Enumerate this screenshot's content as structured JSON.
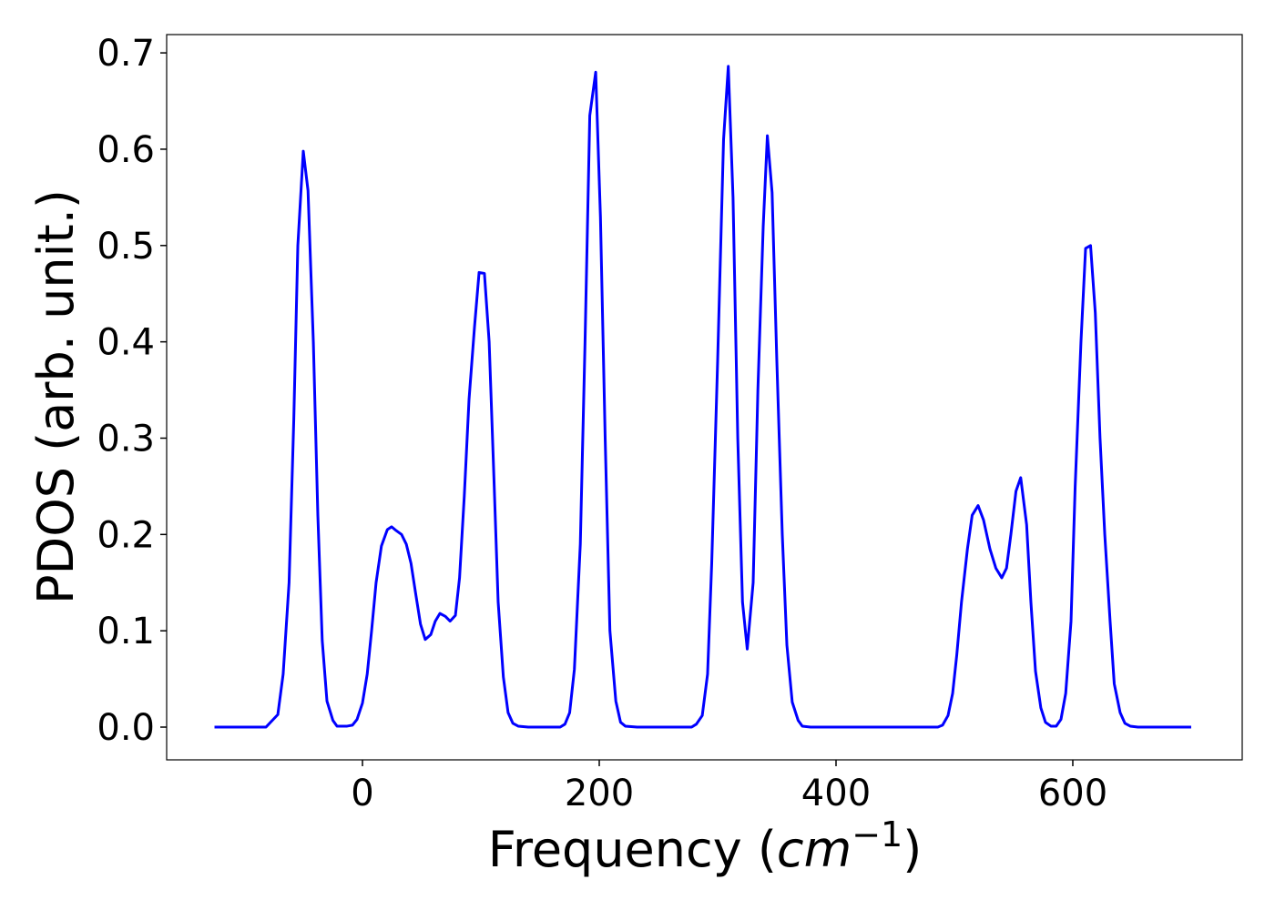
{
  "chart_data": {
    "type": "line",
    "x_label_parts": [
      "Frequency (",
      "cm",
      "−1",
      ")"
    ],
    "y_label": "PDOS (arb. unit.)",
    "x": [
      -125,
      -81.5,
      -71.5,
      -67,
      -62,
      -58,
      -54.6,
      -50,
      -46,
      -41.5,
      -37.7,
      -34,
      -30,
      -25,
      -21.5,
      -13,
      -8.5,
      -4.6,
      0,
      4,
      7.7,
      11.5,
      16,
      21,
      24.6,
      28.5,
      33,
      37,
      41,
      45,
      49,
      53,
      57.7,
      61.5,
      65.4,
      70,
      74,
      78.5,
      82,
      86,
      90,
      94.6,
      98.5,
      103,
      107,
      111,
      114.6,
      119,
      123,
      127,
      131.5,
      140,
      167,
      171,
      175,
      179,
      184,
      188,
      192,
      197,
      201,
      205,
      209,
      214,
      218,
      222,
      232,
      278,
      282,
      287,
      291.5,
      295,
      300,
      305,
      309,
      313,
      317,
      321,
      325,
      330,
      334,
      338.5,
      342,
      346,
      350,
      354.6,
      358.5,
      363,
      368,
      371.5,
      378.5,
      486,
      490,
      494.6,
      498.5,
      502,
      506,
      511,
      515,
      520,
      524.6,
      530,
      535,
      540,
      544,
      547.7,
      552,
      556,
      561,
      564.6,
      568.5,
      573,
      576.9,
      581.5,
      586,
      590,
      594,
      598.5,
      602,
      606.9,
      610.8,
      615,
      619,
      623,
      627,
      631.5,
      635,
      640,
      644,
      648.5,
      655,
      700
    ],
    "series": [
      {
        "name": "PDOS",
        "color": "#0000ff",
        "values": [
          0,
          0,
          0.013,
          0.055,
          0.15,
          0.32,
          0.5,
          0.598,
          0.557,
          0.4,
          0.22,
          0.09,
          0.027,
          0.007,
          0.001,
          0.001,
          0.002,
          0.008,
          0.025,
          0.055,
          0.1,
          0.15,
          0.188,
          0.205,
          0.208,
          0.204,
          0.2,
          0.19,
          0.17,
          0.138,
          0.107,
          0.091,
          0.096,
          0.11,
          0.118,
          0.115,
          0.11,
          0.116,
          0.155,
          0.24,
          0.34,
          0.415,
          0.472,
          0.471,
          0.4,
          0.26,
          0.13,
          0.052,
          0.015,
          0.004,
          0.001,
          0,
          0,
          0.003,
          0.015,
          0.06,
          0.19,
          0.4,
          0.635,
          0.68,
          0.53,
          0.3,
          0.1,
          0.027,
          0.005,
          0.001,
          0,
          0,
          0.003,
          0.012,
          0.055,
          0.17,
          0.38,
          0.61,
          0.686,
          0.55,
          0.3,
          0.13,
          0.081,
          0.15,
          0.35,
          0.52,
          0.614,
          0.555,
          0.38,
          0.2,
          0.085,
          0.026,
          0.007,
          0.001,
          0,
          0,
          0.002,
          0.012,
          0.035,
          0.075,
          0.13,
          0.185,
          0.22,
          0.23,
          0.215,
          0.185,
          0.165,
          0.155,
          0.165,
          0.2,
          0.245,
          0.259,
          0.21,
          0.13,
          0.058,
          0.02,
          0.005,
          0.001,
          0.001,
          0.008,
          0.035,
          0.11,
          0.25,
          0.4,
          0.497,
          0.5,
          0.43,
          0.3,
          0.2,
          0.11,
          0.045,
          0.015,
          0.004,
          0.001,
          0,
          0
        ]
      }
    ],
    "xlim": [
      -165.4,
      743.1
    ],
    "ylim": [
      -0.034,
      0.719
    ],
    "xticks": [
      0,
      200,
      400,
      600
    ],
    "yticks": [
      {
        "value": 0,
        "label": "0.0"
      },
      0.1,
      0.2,
      0.3,
      0.4,
      0.5,
      0.6,
      0.7
    ],
    "grid": false
  }
}
